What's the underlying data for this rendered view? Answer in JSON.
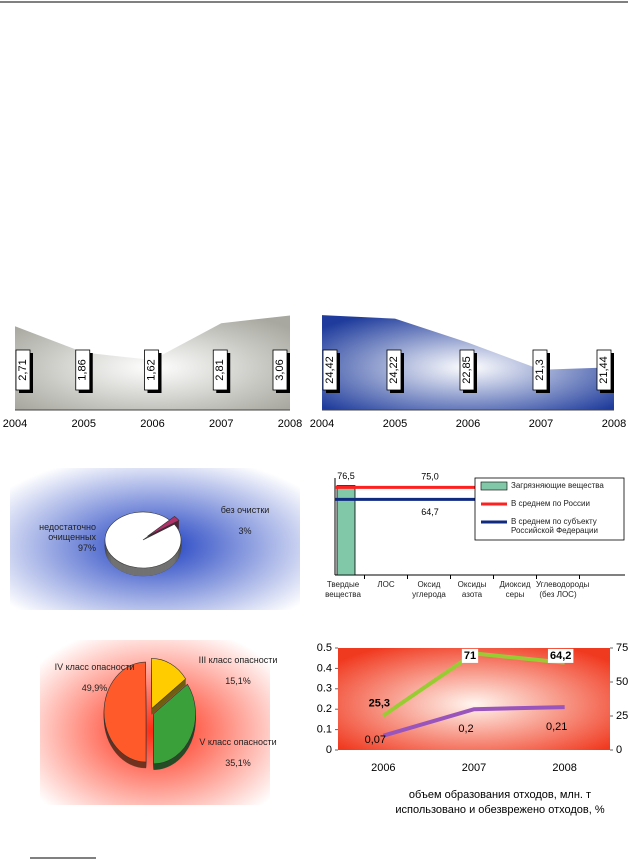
{
  "chart_data": [
    {
      "type": "area",
      "categories": [
        "2004",
        "2005",
        "2006",
        "2007",
        "2008"
      ],
      "values": [
        2.71,
        1.86,
        1.62,
        2.81,
        3.06
      ],
      "value_labels": [
        "2,71",
        "1,86",
        "1,62",
        "2,81",
        "3,06"
      ],
      "color": "#a8a8a0",
      "ylim": [
        0,
        3.4
      ]
    },
    {
      "type": "area",
      "categories": [
        "2004",
        "2005",
        "2006",
        "2007",
        "2008"
      ],
      "values": [
        24.42,
        24.22,
        22.85,
        21.3,
        21.44
      ],
      "value_labels": [
        "24,42",
        "24,22",
        "22,85",
        "21,3",
        "21,44"
      ],
      "color": "#1f3c9c",
      "ylim": [
        19,
        25
      ]
    },
    {
      "type": "pie",
      "categories": [
        "недостаточно очищенных",
        "без очистки"
      ],
      "values": [
        97,
        3
      ],
      "value_labels": [
        "97%",
        "3%"
      ],
      "colors": [
        "#ffffff",
        "#b0306a"
      ]
    },
    {
      "type": "bar",
      "categories": [
        "Твердые вещества",
        "ЛОС",
        "Оксид углерода",
        "Оксиды азота",
        "Диоксид серы",
        "Углеводороды (без ЛОС)"
      ],
      "series": [
        {
          "name": "Загрязняющие вещества",
          "color": "#80c8a8",
          "values": [
            76.5,
            null,
            null,
            null,
            null,
            null
          ],
          "value_labels": [
            "76,5",
            null,
            null,
            null,
            null,
            null
          ]
        }
      ],
      "reference_lines": [
        {
          "name": "В среднем по России",
          "color": "#ff2020",
          "value": 75,
          "value_label": "75,0"
        },
        {
          "name": "В среднем по субъекту Российской Федерации",
          "color": "#102a80",
          "value": 64.7,
          "value_label": "64,7"
        }
      ],
      "ylim": [
        0,
        83
      ]
    },
    {
      "type": "pie",
      "categories": [
        "IV класс опасности",
        "III класс опасности",
        "V класс опасности"
      ],
      "values": [
        49.9,
        15.1,
        35.1
      ],
      "value_labels": [
        "49,9%",
        "15,1%",
        "35,1%"
      ],
      "colors": [
        "#ff5a2a",
        "#ffcc00",
        "#3aa03a"
      ]
    },
    {
      "type": "line",
      "categories": [
        "2006",
        "2007",
        "2008"
      ],
      "series": [
        {
          "name": "объем образования отходов, млн. т",
          "color": "#9955bb",
          "values": [
            0.07,
            0.2,
            0.21
          ],
          "value_labels": [
            "0,07",
            "0,2",
            "0,21"
          ]
        },
        {
          "name": "использовано и обезврежено отходов, %",
          "color": "#99cc33",
          "axis": "y2",
          "values": [
            25.3,
            71,
            64.2
          ],
          "value_labels": [
            "25,3",
            "71",
            "64,2"
          ]
        }
      ],
      "ylim": [
        0,
        0.5
      ],
      "yticks": [
        0,
        0.1,
        0.2,
        0.3,
        0.4,
        0.5
      ],
      "y2lim": [
        0,
        75
      ],
      "y2ticks": [
        0,
        25,
        50,
        75
      ]
    }
  ]
}
